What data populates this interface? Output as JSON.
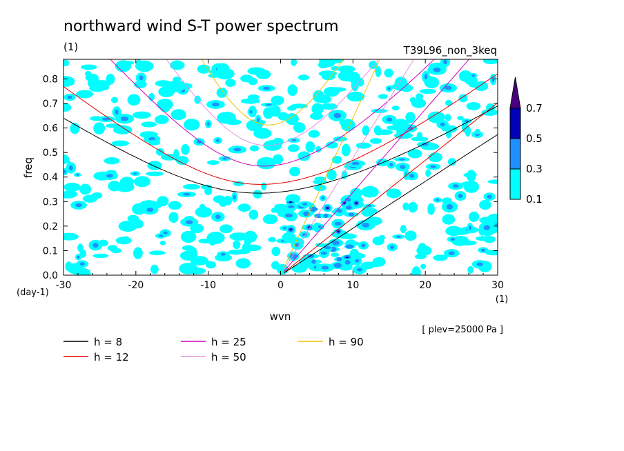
{
  "chart_data": {
    "type": "heatmap",
    "title": "northward wind S-T power spectrum",
    "subtitle_left": "(1)",
    "subtitle_right": "T39L96_non_3keq",
    "xlabel": "wvn",
    "ylabel": "freq",
    "x_unit": "(1)",
    "y_unit": "(day-1)",
    "xlim": [
      -30,
      30
    ],
    "ylim": [
      0,
      0.88
    ],
    "xticks": [
      "-30",
      "-20",
      "-10",
      "0",
      "10",
      "20",
      "30"
    ],
    "yticks": [
      "0.0",
      "0.1",
      "0.2",
      "0.3",
      "0.4",
      "0.5",
      "0.6",
      "0.7",
      "0.8"
    ],
    "level_annotation": "[ plev=25000 Pa ]",
    "colorbar": {
      "levels": [
        "0.1",
        "0.3",
        "0.5",
        "0.7"
      ],
      "colors": [
        "#00ffff",
        "#1e90ff",
        "#0000b4",
        "#4b0082"
      ]
    },
    "dispersion_curves": [
      {
        "name": "h =  8",
        "h": 8,
        "color": "#000000"
      },
      {
        "name": "h = 12",
        "h": 12,
        "color": "#e00000"
      },
      {
        "name": "h = 25",
        "h": 25,
        "color": "#d000c0"
      },
      {
        "name": "h = 50",
        "h": 50,
        "color": "#e890e0"
      },
      {
        "name": "h = 90",
        "h": 90,
        "color": "#f0c000"
      }
    ]
  }
}
